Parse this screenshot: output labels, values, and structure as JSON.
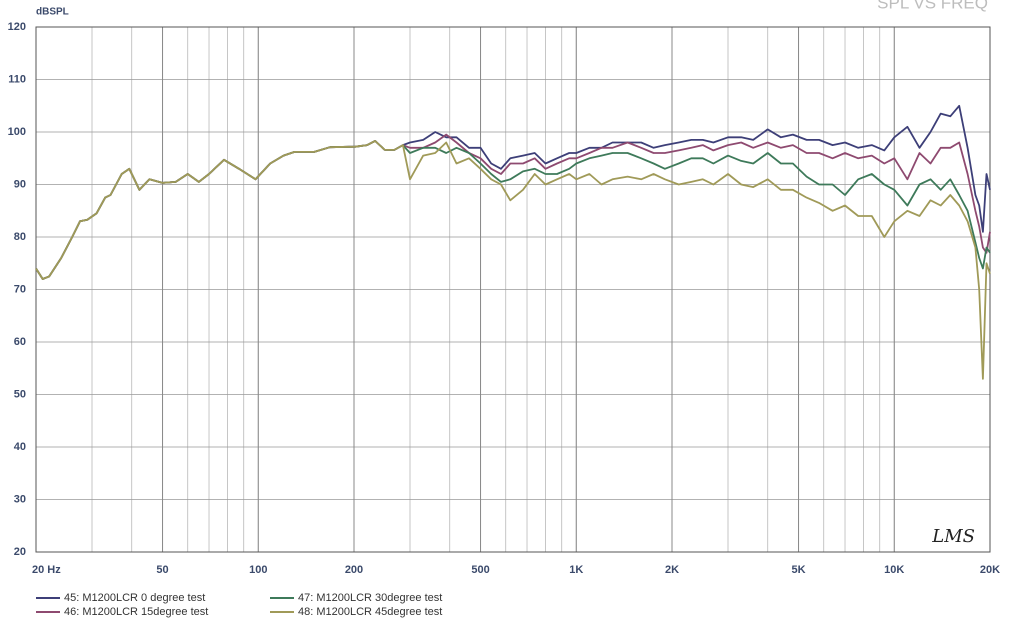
{
  "chart_data": {
    "type": "line",
    "title": "SPL VS FREQ",
    "y_label": "dBSPL",
    "logo": "LMS",
    "x": [
      20,
      21,
      22,
      24,
      26,
      27.5,
      29,
      31,
      33,
      34.3,
      37.2,
      39.3,
      42.3,
      45.5,
      50,
      55,
      60,
      65,
      70,
      78,
      87,
      98,
      109,
      120,
      130,
      150,
      168,
      202,
      220,
      233,
      250,
      268,
      285,
      300,
      330,
      360,
      390,
      420,
      460,
      500,
      540,
      580,
      620,
      680,
      740,
      800,
      870,
      950,
      1000,
      1100,
      1200,
      1300,
      1450,
      1600,
      1750,
      1900,
      2100,
      2300,
      2500,
      2700,
      3000,
      3300,
      3600,
      4000,
      4400,
      4800,
      5300,
      5800,
      6400,
      7000,
      7700,
      8500,
      9300,
      10000,
      11000,
      12000,
      13000,
      14000,
      15000,
      16000,
      17000,
      18000,
      18500,
      19000,
      19500,
      20000
    ],
    "series": [
      {
        "name": "45: M1200LCR  0 degree test",
        "color": "#3d3f78",
        "values": [
          74,
          72,
          72.5,
          76,
          80,
          83,
          83.3,
          84.5,
          87.5,
          88,
          92,
          93,
          89,
          91,
          90.3,
          90.5,
          92,
          90.5,
          92,
          94.7,
          93,
          91,
          94,
          95.5,
          96.2,
          96.2,
          97.1,
          97.2,
          97.5,
          98.3,
          96.6,
          96.6,
          97.5,
          98,
          98.5,
          100,
          99,
          99,
          97,
          97,
          94,
          93,
          95,
          95.5,
          96,
          94,
          95,
          96,
          96,
          97,
          97,
          98,
          98,
          98,
          97,
          97.5,
          98,
          98.5,
          98.5,
          98,
          99,
          99,
          98.5,
          100.5,
          99,
          99.5,
          98.5,
          98.5,
          97.5,
          98,
          97,
          97.5,
          96.5,
          99,
          101,
          97,
          100,
          103.5,
          103,
          105,
          97,
          88,
          86,
          81,
          92,
          89
        ]
      },
      {
        "name": "46: M1200LCR  15degree test",
        "color": "#8e4a70",
        "values": [
          74,
          72,
          72.5,
          76,
          80,
          83,
          83.3,
          84.5,
          87.5,
          88,
          92,
          93,
          89,
          91,
          90.3,
          90.5,
          92,
          90.5,
          92,
          94.7,
          93,
          91,
          94,
          95.5,
          96.2,
          96.2,
          97.1,
          97.2,
          97.5,
          98.3,
          96.6,
          96.6,
          97.5,
          97,
          97,
          98,
          99.5,
          98,
          96,
          95,
          93,
          92,
          94,
          94,
          95,
          93,
          94,
          95,
          95,
          96,
          97,
          97,
          98,
          97,
          96,
          96,
          96.5,
          97,
          97.5,
          96.5,
          97.5,
          98,
          97,
          98,
          97,
          97.5,
          96,
          96,
          95,
          96,
          95,
          95.5,
          94,
          95,
          91,
          96,
          94,
          97,
          97,
          98,
          92,
          85,
          82,
          78,
          77,
          81
        ]
      },
      {
        "name": "47: M1200LCR  30degree test",
        "color": "#3e7a5a",
        "values": [
          74,
          72,
          72.5,
          76,
          80,
          83,
          83.3,
          84.5,
          87.5,
          88,
          92,
          93,
          89,
          91,
          90.3,
          90.5,
          92,
          90.5,
          92,
          94.7,
          93,
          91,
          94,
          95.5,
          96.2,
          96.2,
          97.1,
          97.2,
          97.5,
          98.3,
          96.6,
          96.6,
          97.5,
          96,
          97,
          97,
          96,
          97,
          96,
          94,
          92,
          90.5,
          91,
          92.5,
          93,
          92,
          92,
          93,
          94,
          95,
          95.5,
          96,
          96,
          95,
          94,
          93,
          94,
          95,
          95,
          94,
          95.5,
          94.5,
          94,
          96,
          94,
          94,
          91.5,
          90,
          90,
          88,
          91,
          92,
          90,
          89,
          86,
          90,
          91,
          89,
          91,
          88,
          85,
          79,
          76,
          74,
          78,
          77
        ]
      },
      {
        "name": "48: M1200LCR  45degree test",
        "color": "#a09a58",
        "values": [
          74,
          72,
          72.5,
          76,
          80,
          83,
          83.3,
          84.5,
          87.5,
          88,
          92,
          93,
          89,
          91,
          90.3,
          90.5,
          92,
          90.5,
          92,
          94.7,
          93,
          91,
          94,
          95.5,
          96.2,
          96.2,
          97.1,
          97.2,
          97.5,
          98.3,
          96.6,
          96.6,
          97.5,
          91,
          95.5,
          96,
          98,
          94,
          95,
          93,
          91,
          90,
          87,
          89,
          92,
          90,
          91,
          92,
          91,
          92,
          90,
          91,
          91.5,
          91,
          92,
          91,
          90,
          90.5,
          91,
          90,
          92,
          90,
          89.5,
          91,
          89,
          89,
          87.5,
          86.5,
          85,
          86,
          84,
          84,
          80,
          83,
          85,
          84,
          87,
          86,
          88,
          86,
          83,
          78,
          70,
          53,
          75,
          73
        ]
      }
    ],
    "xlim": [
      20,
      20000
    ],
    "log_x": true,
    "xticks": [
      {
        "value": 20,
        "label": "20 Hz"
      },
      50,
      100,
      200,
      500,
      {
        "value": 1000,
        "label": "1K"
      },
      {
        "value": 2000,
        "label": "2K"
      },
      {
        "value": 5000,
        "label": "5K"
      },
      {
        "value": 10000,
        "label": "10K"
      },
      {
        "value": 20000,
        "label": "20K"
      }
    ],
    "ylim": [
      20,
      120
    ],
    "yticks": [
      20,
      30,
      40,
      50,
      60,
      70,
      80,
      90,
      100,
      110,
      120
    ],
    "grid": true
  }
}
